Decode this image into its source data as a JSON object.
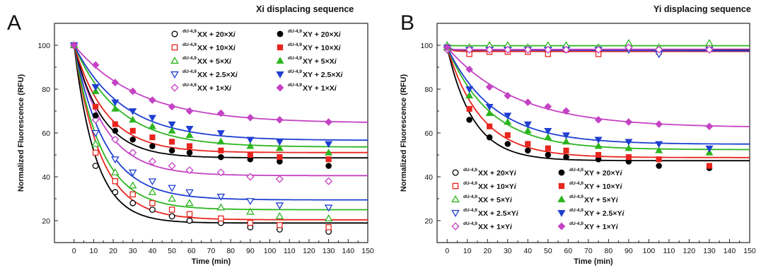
{
  "chart_data": [
    {
      "panel_letter": "A",
      "title": "Xi displacing sequence",
      "type": "scatter",
      "xlabel": "Time (min)",
      "ylabel": "Normalized Fluorescence (RFU)",
      "xlim": [
        -10,
        150
      ],
      "ylim": [
        10,
        110
      ],
      "xticks": [
        0,
        10,
        20,
        30,
        40,
        50,
        60,
        70,
        80,
        90,
        100,
        110,
        120,
        130,
        140,
        150
      ],
      "yticks": [
        20,
        40,
        60,
        80,
        100
      ],
      "legend_position": "top-right",
      "x": [
        0,
        11,
        21,
        30,
        40,
        50,
        59,
        75,
        90,
        105,
        130
      ],
      "series": [
        {
          "name": "dU-4,9 XX + 20×Xi",
          "sup": "dU-4,9",
          "label": "XX + 20×Xi",
          "color": "#000000",
          "marker": "circle",
          "filled": false,
          "values": [
            100,
            45,
            33,
            28,
            25,
            22,
            20,
            19,
            17,
            16,
            15
          ]
        },
        {
          "name": "dU-4,9 XX + 10×Xi",
          "sup": "dU-4,9",
          "label": "XX + 10×Xi",
          "color": "#e8251f",
          "marker": "square",
          "filled": false,
          "values": [
            100,
            51,
            38,
            32,
            28,
            25,
            23,
            21,
            19,
            18,
            17
          ]
        },
        {
          "name": "dU-4,9 XX + 5×Xi",
          "sup": "dU-4,9",
          "label": "XX + 5×Xi",
          "color": "#2db51f",
          "marker": "triangle-up",
          "filled": false,
          "values": [
            100,
            55,
            42,
            36,
            33,
            30,
            28,
            26,
            24,
            22,
            21
          ]
        },
        {
          "name": "dU-4,9 XX + 2.5×Xi",
          "sup": "dU-4,9",
          "label": "XX + 2.5×Xi",
          "color": "#1e3fd0",
          "marker": "triangle-down",
          "filled": false,
          "values": [
            100,
            60,
            48,
            42,
            38,
            35,
            33,
            31,
            29,
            27,
            26
          ]
        },
        {
          "name": "dU-4,9 XX + 1×Xi",
          "sup": "dU-4,9",
          "label": "XX + 1×Xi",
          "color": "#c443c4",
          "marker": "diamond",
          "filled": false,
          "values": [
            100,
            66,
            57,
            51,
            47,
            45,
            43,
            42,
            40,
            39,
            38
          ]
        },
        {
          "name": "dU-4,9 XY + 20×Xi",
          "sup": "dU-4,9",
          "label": "XY + 20×Xi",
          "color": "#000000",
          "marker": "circle",
          "filled": true,
          "values": [
            100,
            68,
            61,
            57,
            54,
            52,
            51,
            49,
            48,
            47,
            45
          ]
        },
        {
          "name": "dU-4,9 XY + 10×Xi",
          "sup": "dU-4,9",
          "label": "XY + 10×Xi",
          "color": "#e8251f",
          "marker": "square",
          "filled": true,
          "values": [
            100,
            72,
            64,
            61,
            58,
            56,
            54,
            52,
            50,
            49,
            48
          ]
        },
        {
          "name": "dU-4,9 XY + 5×Xi",
          "sup": "dU-4,9",
          "label": "XY + 5×Xi",
          "color": "#2db51f",
          "marker": "triangle-up",
          "filled": true,
          "values": [
            100,
            79,
            71,
            66,
            63,
            61,
            59,
            56,
            54,
            53,
            51
          ]
        },
        {
          "name": "dU-4,9 XY + 2.5×Xi",
          "sup": "dU-4,9",
          "label": "XY + 2.5×Xi",
          "color": "#1e3fd0",
          "marker": "triangle-down",
          "filled": true,
          "values": [
            100,
            81,
            74,
            70,
            67,
            64,
            62,
            60,
            57,
            56,
            55
          ]
        },
        {
          "name": "dU-4,9 XY + 1×Xi",
          "sup": "dU-4,9",
          "label": "XY + 1×Xi",
          "color": "#c443c4",
          "marker": "diamond",
          "filled": true,
          "values": [
            100,
            91,
            83,
            79,
            75,
            72,
            70,
            69,
            67,
            66,
            65
          ]
        }
      ]
    },
    {
      "panel_letter": "B",
      "title": "Yi displacing sequence",
      "type": "scatter",
      "xlabel": "Time (min)",
      "ylabel": "Normalized Fluorescence (RFU)",
      "xlim": [
        -5,
        150
      ],
      "ylim": [
        10,
        110
      ],
      "xticks": [
        0,
        10,
        20,
        30,
        40,
        50,
        60,
        70,
        80,
        90,
        100,
        110,
        120,
        130,
        140,
        150
      ],
      "yticks": [
        20,
        40,
        60,
        80,
        100
      ],
      "legend_position": "bottom-left",
      "x": [
        0,
        11,
        21,
        30,
        40,
        50,
        59,
        75,
        90,
        105,
        130
      ],
      "series": [
        {
          "name": "dU-4,9 XX + 20×Yi",
          "sup": "dU-4,9",
          "label": "XX + 20×Yi",
          "color": "#000000",
          "marker": "circle",
          "filled": false,
          "values": [
            99,
            97,
            98,
            98,
            98,
            97,
            98,
            97,
            99,
            97,
            99
          ]
        },
        {
          "name": "dU-4,9 XX + 10×Yi",
          "sup": "dU-4,9",
          "label": "XX + 10×Yi",
          "color": "#e8251f",
          "marker": "square",
          "filled": false,
          "values": [
            99,
            96,
            97,
            97,
            97,
            96,
            98,
            96,
            99,
            97,
            99
          ]
        },
        {
          "name": "dU-4,9 XX + 5×Yi",
          "sup": "dU-4,9",
          "label": "XX + 5×Yi",
          "color": "#2db51f",
          "marker": "triangle-up",
          "filled": false,
          "values": [
            100,
            99,
            100,
            100,
            99,
            100,
            100,
            99,
            101,
            99,
            101
          ]
        },
        {
          "name": "dU-4,9 XX + 2.5×Yi",
          "sup": "dU-4,9",
          "label": "XX + 2.5×Yi",
          "color": "#1e3fd0",
          "marker": "triangle-down",
          "filled": false,
          "values": [
            98,
            98,
            98,
            98,
            98,
            98,
            98,
            98,
            98,
            96,
            98
          ]
        },
        {
          "name": "dU-4,9 XX + 1×Yi",
          "sup": "dU-4,9",
          "label": "XX + 1×Yi",
          "color": "#c443c4",
          "marker": "diamond",
          "filled": false,
          "values": [
            98,
            98,
            98,
            98,
            98,
            98,
            98,
            98,
            99,
            98,
            98
          ]
        },
        {
          "name": "dU-4,9 XY + 20×Yi",
          "sup": "dU-4,9",
          "label": "XY + 20×Yi",
          "color": "#000000",
          "marker": "circle",
          "filled": true,
          "values": [
            99,
            66,
            58,
            55,
            52,
            50,
            49,
            48,
            47,
            45,
            44
          ]
        },
        {
          "name": "dU-4,9 XY + 10×Yi",
          "sup": "dU-4,9",
          "label": "XY + 10×Yi",
          "color": "#e8251f",
          "marker": "square",
          "filled": true,
          "values": [
            99,
            71,
            63,
            59,
            55,
            53,
            52,
            50,
            49,
            48,
            45
          ]
        },
        {
          "name": "dU-4,9 XY + 5×Yi",
          "sup": "dU-4,9",
          "label": "XY + 5×Yi",
          "color": "#2db51f",
          "marker": "triangle-up",
          "filled": true,
          "values": [
            99,
            77,
            69,
            65,
            61,
            58,
            56,
            54,
            53,
            52,
            51
          ]
        },
        {
          "name": "dU-4,9 XY + 2.5×Yi",
          "sup": "dU-4,9",
          "label": "XY + 2.5×Yi",
          "color": "#1e3fd0",
          "marker": "triangle-down",
          "filled": true,
          "values": [
            99,
            80,
            72,
            68,
            64,
            61,
            59,
            57,
            56,
            55,
            53
          ]
        },
        {
          "name": "dU-4,9 XY + 1×Yi",
          "sup": "dU-4,9",
          "label": "XY + 1×Yi",
          "color": "#c443c4",
          "marker": "diamond",
          "filled": true,
          "values": [
            99,
            89,
            81,
            77,
            74,
            72,
            70,
            66,
            65,
            64,
            63
          ]
        }
      ]
    }
  ]
}
